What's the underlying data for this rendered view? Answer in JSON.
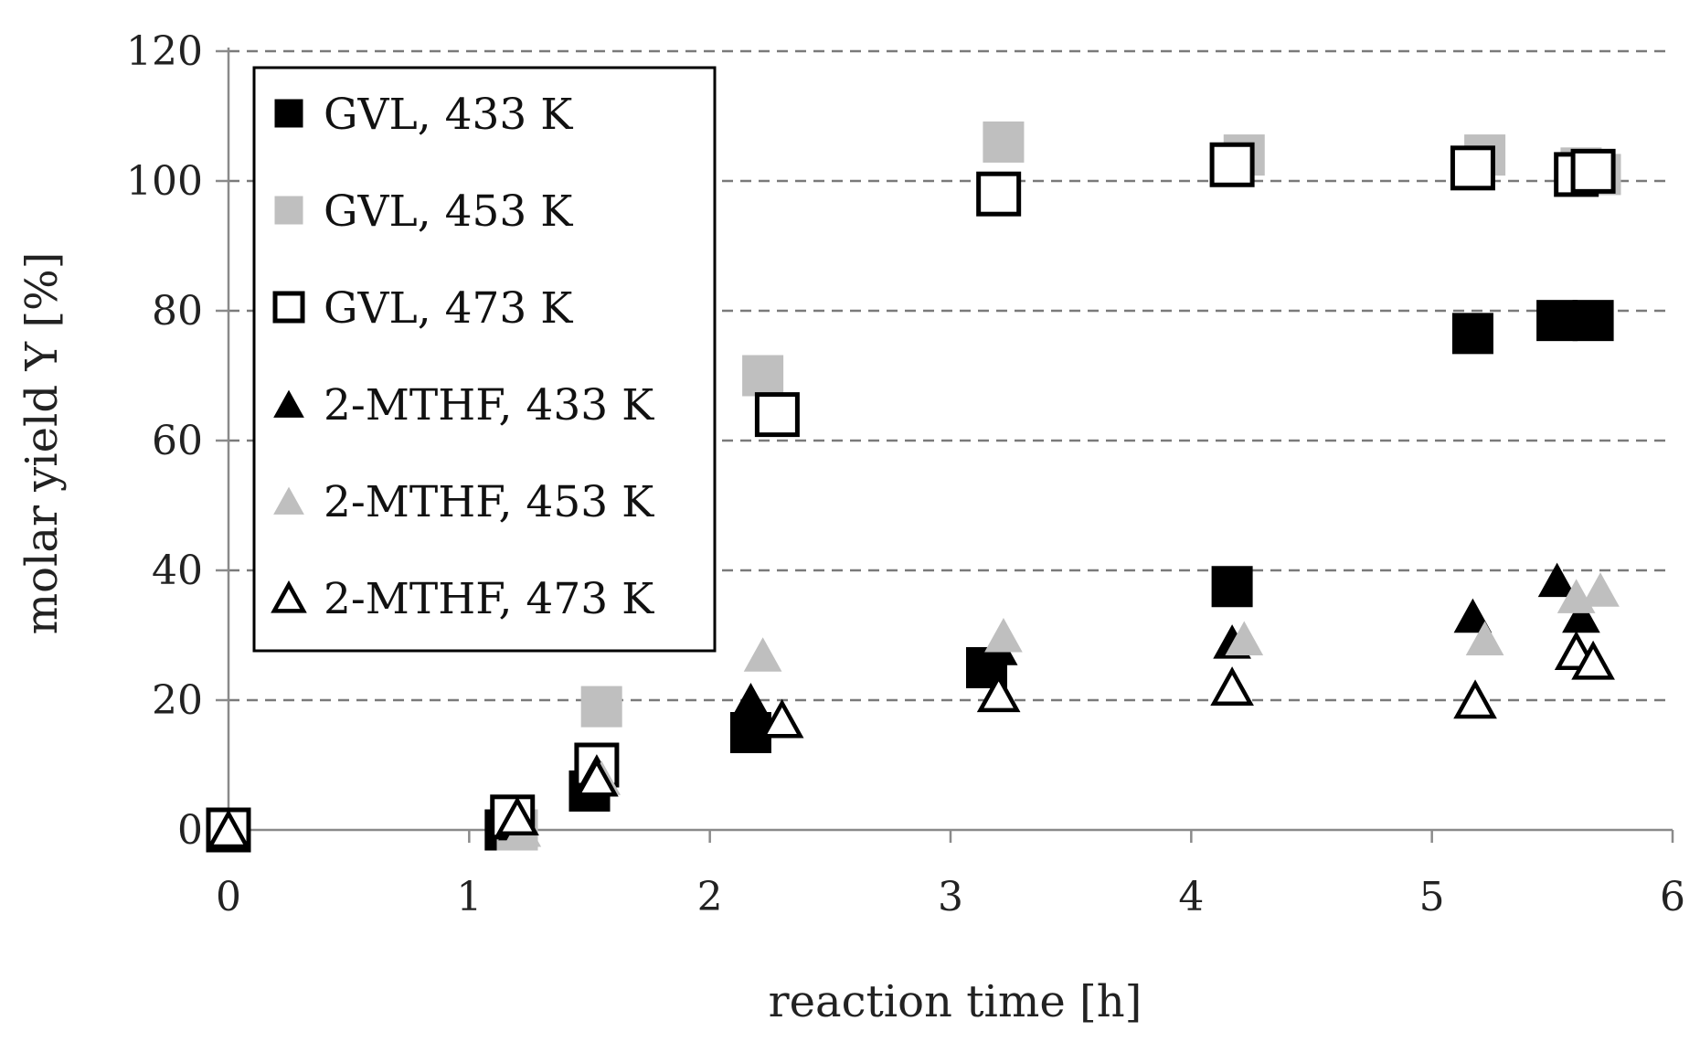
{
  "chart_data": {
    "type": "scatter",
    "title": "",
    "xlabel": "reaction time [h]",
    "ylabel": "molar yield Y [%]",
    "xlim": [
      0,
      6
    ],
    "ylim": [
      0,
      120
    ],
    "xticks": [
      0,
      1,
      2,
      3,
      4,
      5,
      6
    ],
    "yticks": [
      0,
      20,
      40,
      60,
      80,
      100,
      120
    ],
    "grid": "horizontal dashed",
    "legend_position": "top-left",
    "series": [
      {
        "name": "GVL, 433 K",
        "marker": "square",
        "fill": "#000000",
        "stroke": "#000000",
        "points": [
          [
            0,
            0
          ],
          [
            1.15,
            0
          ],
          [
            1.5,
            6
          ],
          [
            2.17,
            15
          ],
          [
            3.15,
            25
          ],
          [
            4.17,
            37.5
          ],
          [
            5.17,
            76.5
          ],
          [
            5.52,
            78.5
          ],
          [
            5.67,
            78.5
          ]
        ]
      },
      {
        "name": "GVL, 453 K",
        "marker": "square",
        "fill": "#bfbfbf",
        "stroke": "#bfbfbf",
        "points": [
          [
            0,
            0
          ],
          [
            1.2,
            0
          ],
          [
            1.55,
            19
          ],
          [
            2.22,
            70
          ],
          [
            3.22,
            106
          ],
          [
            4.22,
            104
          ],
          [
            5.22,
            104
          ],
          [
            5.62,
            102
          ],
          [
            5.7,
            101
          ]
        ]
      },
      {
        "name": "GVL, 473 K",
        "marker": "square",
        "fill": "none",
        "stroke": "#000000",
        "points": [
          [
            0,
            0
          ],
          [
            1.18,
            2
          ],
          [
            1.53,
            10
          ],
          [
            2.28,
            64
          ],
          [
            3.2,
            98
          ],
          [
            4.17,
            102.5
          ],
          [
            5.17,
            102
          ],
          [
            5.6,
            101
          ],
          [
            5.67,
            101.5
          ]
        ]
      },
      {
        "name": "2-MTHF, 433 K",
        "marker": "triangle",
        "fill": "#000000",
        "stroke": "#000000",
        "points": [
          [
            0,
            0
          ],
          [
            1.2,
            1
          ],
          [
            1.53,
            9
          ],
          [
            2.17,
            20
          ],
          [
            3.2,
            28
          ],
          [
            4.17,
            29
          ],
          [
            5.17,
            33
          ],
          [
            5.52,
            38.5
          ],
          [
            5.62,
            33
          ]
        ]
      },
      {
        "name": "2-MTHF, 453 K",
        "marker": "triangle",
        "fill": "#bfbfbf",
        "stroke": "#bfbfbf",
        "points": [
          [
            0,
            0
          ],
          [
            1.22,
            0
          ],
          [
            1.55,
            8
          ],
          [
            2.22,
            27
          ],
          [
            3.22,
            30
          ],
          [
            4.22,
            29.5
          ],
          [
            5.22,
            29.5
          ],
          [
            5.6,
            36
          ],
          [
            5.7,
            37
          ]
        ]
      },
      {
        "name": "2-MTHF, 473 K",
        "marker": "triangle",
        "fill": "none",
        "stroke": "#000000",
        "points": [
          [
            0,
            0
          ],
          [
            1.2,
            2
          ],
          [
            1.53,
            8
          ],
          [
            2.3,
            17
          ],
          [
            3.2,
            21
          ],
          [
            4.17,
            22
          ],
          [
            5.18,
            20
          ],
          [
            5.6,
            27.5
          ],
          [
            5.67,
            26
          ]
        ]
      }
    ]
  }
}
